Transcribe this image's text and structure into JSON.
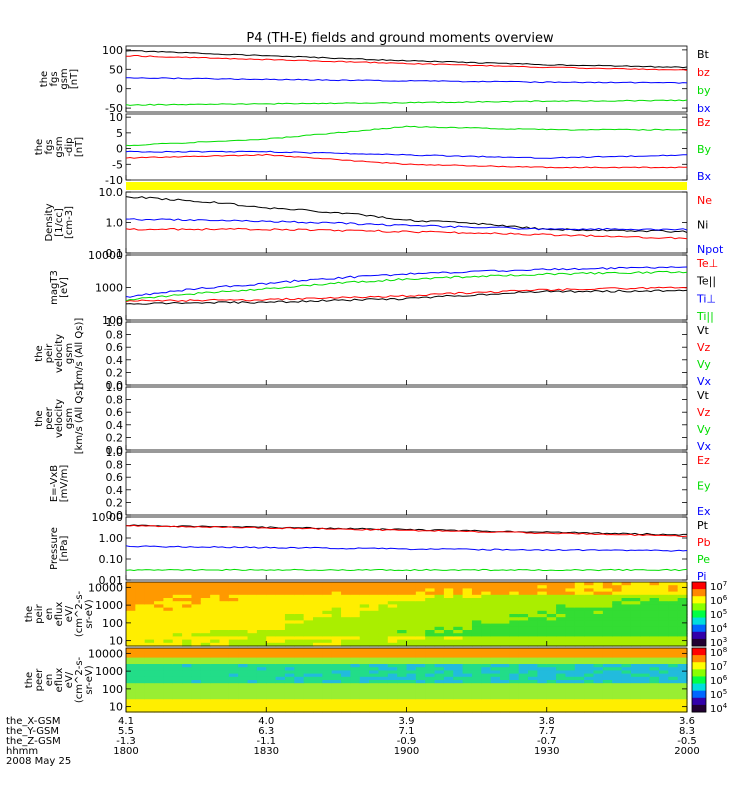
{
  "title": "P4 (TH-E) fields and ground moments overview",
  "colors": {
    "black": "#000000",
    "red": "#ff0000",
    "green": "#00dd00",
    "blue": "#0000ff",
    "yellow": "#ffff00"
  },
  "time_axis": {
    "ticks": [
      "1800",
      "1830",
      "1900",
      "1930",
      "2000"
    ],
    "date": "2008 May 25",
    "rows": [
      {
        "label": "the_X-GSM",
        "values": [
          "4.1",
          "4.0",
          "3.9",
          "3.8",
          "3.6"
        ]
      },
      {
        "label": "the_Y-GSM",
        "values": [
          "5.5",
          "6.3",
          "7.1",
          "7.7",
          "8.3"
        ]
      },
      {
        "label": "the_Z-GSM",
        "values": [
          "-1.3",
          "-1.1",
          "-0.9",
          "-0.7",
          "-0.5"
        ]
      },
      {
        "label": "hhmm",
        "values": [
          "1800",
          "1830",
          "1900",
          "1930",
          "2000"
        ]
      }
    ]
  },
  "chart_data": [
    {
      "type": "line",
      "panel": "fgs_gsm_1",
      "ylabel_lines": [
        "the",
        "fgs",
        "gsm",
        "[nT]"
      ],
      "ylim": [
        -60,
        110
      ],
      "yticks": [
        "100",
        "50",
        "0",
        "-50"
      ],
      "x": [
        "1800",
        "1830",
        "1900",
        "1930",
        "2000"
      ],
      "series": [
        {
          "name": "Bt",
          "color": "black",
          "values": [
            98,
            85,
            72,
            62,
            55
          ]
        },
        {
          "name": "bz",
          "color": "red",
          "values": [
            85,
            75,
            65,
            55,
            48
          ]
        },
        {
          "name": "by",
          "color": "green",
          "values": [
            -42,
            -39,
            -36,
            -32,
            -30
          ]
        },
        {
          "name": "bx",
          "color": "blue",
          "values": [
            28,
            24,
            20,
            17,
            15
          ]
        }
      ]
    },
    {
      "type": "line",
      "panel": "fgs_gsm_dip",
      "ylabel_lines": [
        "the",
        "fgs",
        "gsm",
        "-dip",
        "[nT]"
      ],
      "ylim": [
        -10,
        11
      ],
      "yticks": [
        "10",
        "5",
        "0",
        "-5",
        "-10"
      ],
      "x": [
        "1800",
        "1830",
        "1900",
        "1930",
        "2000"
      ],
      "series": [
        {
          "name": "Bz",
          "color": "red",
          "values": [
            -3,
            -2,
            -5,
            -6,
            -6
          ]
        },
        {
          "name": "By",
          "color": "green",
          "values": [
            1,
            3,
            7,
            6,
            6
          ]
        },
        {
          "name": "Bx",
          "color": "blue",
          "values": [
            -1,
            -1,
            -2,
            -3,
            -2
          ]
        }
      ]
    },
    {
      "type": "line",
      "panel": "density",
      "ylabel_lines": [
        "Density",
        "[1/cc]",
        "[cm-3]"
      ],
      "ylog": true,
      "ylim": [
        0.1,
        10
      ],
      "yticks": [
        "10.0",
        "1.0",
        "0.1"
      ],
      "x": [
        "1800",
        "1830",
        "1900",
        "1930",
        "2000"
      ],
      "series": [
        {
          "name": "Ne",
          "color": "red",
          "values": [
            0.6,
            0.6,
            0.5,
            0.4,
            0.3
          ]
        },
        {
          "name": "Ni",
          "color": "black",
          "values": [
            7,
            3,
            1.2,
            0.6,
            0.5
          ]
        },
        {
          "name": "Npot",
          "color": "blue",
          "values": [
            1.3,
            1.1,
            0.8,
            0.6,
            0.6
          ]
        }
      ]
    },
    {
      "type": "line",
      "panel": "temperature",
      "ylabel_lines": [
        "magT3",
        "[eV]"
      ],
      "ylog": true,
      "ylim": [
        100,
        10000
      ],
      "yticks": [
        "10000",
        "1000",
        "100"
      ],
      "x": [
        "1800",
        "1830",
        "1900",
        "1930",
        "2000"
      ],
      "series": [
        {
          "name": "Te⊥",
          "color": "red",
          "values": [
            380,
            420,
            550,
            850,
            1000
          ]
        },
        {
          "name": "Te||",
          "color": "black",
          "values": [
            320,
            350,
            450,
            750,
            800
          ]
        },
        {
          "name": "Ti⊥",
          "color": "blue",
          "values": [
            500,
            1300,
            2600,
            3600,
            4200
          ]
        },
        {
          "name": "Ti||",
          "color": "green",
          "values": [
            400,
            900,
            1800,
            2600,
            3000
          ]
        }
      ]
    },
    {
      "type": "line",
      "panel": "peir_velocity",
      "ylabel_lines": [
        "the",
        "peir",
        "velocity",
        "gsm",
        "[km/s (All Qs)]"
      ],
      "ylim": [
        0,
        1
      ],
      "yticks": [
        "1.0",
        "0.8",
        "0.6",
        "0.4",
        "0.2",
        "0.0"
      ],
      "series": [
        {
          "name": "Vt",
          "color": "black",
          "values": []
        },
        {
          "name": "Vz",
          "color": "red",
          "values": []
        },
        {
          "name": "Vy",
          "color": "green",
          "values": []
        },
        {
          "name": "Vx",
          "color": "blue",
          "values": []
        }
      ]
    },
    {
      "type": "line",
      "panel": "peer_velocity",
      "ylabel_lines": [
        "the",
        "peer",
        "velocity",
        "gsm",
        "[km/s (All Qs)]"
      ],
      "ylim": [
        0,
        1
      ],
      "yticks": [
        "1.0",
        "0.8",
        "0.6",
        "0.4",
        "0.2",
        "0.0"
      ],
      "series": [
        {
          "name": "Vt",
          "color": "black",
          "values": []
        },
        {
          "name": "Vz",
          "color": "red",
          "values": []
        },
        {
          "name": "Vy",
          "color": "green",
          "values": []
        },
        {
          "name": "Vx",
          "color": "blue",
          "values": []
        }
      ]
    },
    {
      "type": "line",
      "panel": "efield",
      "ylabel_lines": [
        "E=-VxB",
        "[mV/m]"
      ],
      "ylim": [
        0,
        1
      ],
      "yticks": [
        "1.0",
        "0.8",
        "0.6",
        "0.4",
        "0.2",
        "0.0"
      ],
      "series": [
        {
          "name": "Ez",
          "color": "red",
          "values": []
        },
        {
          "name": "Ey",
          "color": "green",
          "values": []
        },
        {
          "name": "Ex",
          "color": "blue",
          "values": []
        }
      ]
    },
    {
      "type": "line",
      "panel": "pressure",
      "ylabel_lines": [
        "Pressure",
        "[nPa]"
      ],
      "ylog": true,
      "ylim": [
        0.01,
        10
      ],
      "yticks": [
        "10.00",
        "1.00",
        "0.10",
        "0.01"
      ],
      "x": [
        "1800",
        "1830",
        "1900",
        "1930",
        "2000"
      ],
      "series": [
        {
          "name": "Pt",
          "color": "black",
          "values": [
            4,
            3.2,
            2.5,
            1.9,
            1.4
          ]
        },
        {
          "name": "Pb",
          "color": "red",
          "values": [
            3.8,
            3.0,
            2.3,
            1.7,
            1.2
          ]
        },
        {
          "name": "Pe",
          "color": "green",
          "values": [
            0.03,
            0.03,
            0.03,
            0.03,
            0.03
          ]
        },
        {
          "name": "Pi",
          "color": "blue",
          "values": [
            0.4,
            0.35,
            0.3,
            0.27,
            0.25
          ]
        }
      ]
    },
    {
      "type": "heatmap",
      "panel": "peir_spectrogram",
      "ylabel_lines": [
        "the",
        "peir",
        "en",
        "eflux",
        "eV/",
        "(cm^2-s-",
        "sr-eV)"
      ],
      "ylog": true,
      "ylim": [
        5,
        20000
      ],
      "yticks": [
        "10000",
        "1000",
        "100",
        "10"
      ],
      "colorbar_ticks": [
        "10^7",
        "10^6",
        "10^5",
        "10^4",
        "10^3"
      ]
    },
    {
      "type": "heatmap",
      "panel": "peer_spectrogram",
      "ylabel_lines": [
        "the",
        "peer",
        "en",
        "eflux",
        "eV/",
        "(cm^2-s-",
        "sr-eV)"
      ],
      "ylog": true,
      "ylim": [
        5,
        20000
      ],
      "yticks": [
        "10000",
        "1000",
        "100",
        "10"
      ],
      "colorbar_ticks": [
        "10^8",
        "10^7",
        "10^6",
        "10^5",
        "10^4"
      ]
    }
  ]
}
